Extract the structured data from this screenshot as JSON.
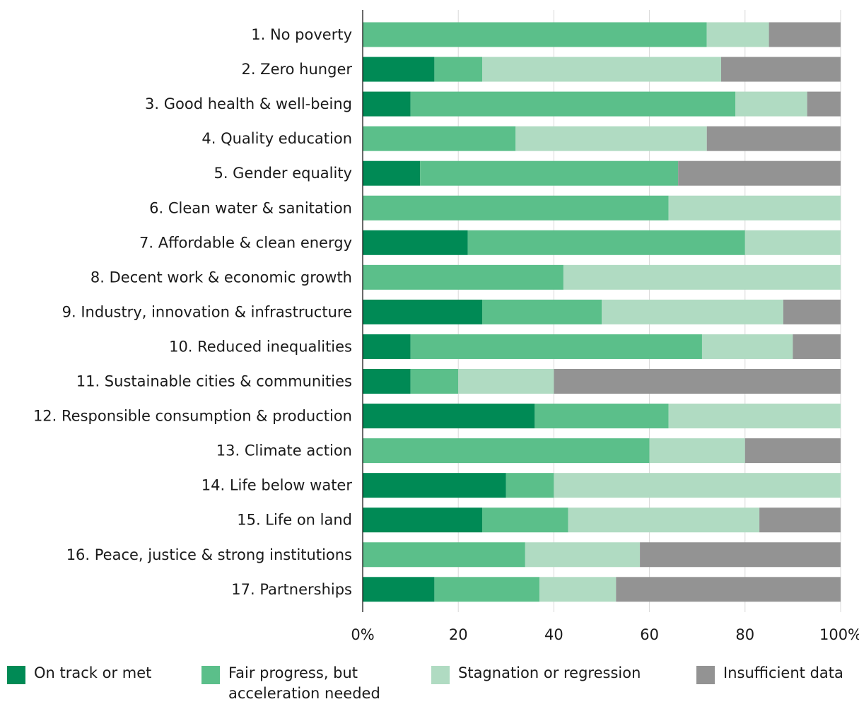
{
  "chart_data": {
    "type": "bar",
    "orientation": "horizontal",
    "stacked": true,
    "categories": [
      "1. No poverty",
      "2. Zero hunger",
      "3. Good health & well-being",
      "4. Quality education",
      "5. Gender equality",
      "6. Clean water & sanitation",
      "7. Affordable & clean energy",
      "8. Decent work & economic growth",
      "9. Industry, innovation & infrastructure",
      "10. Reduced inequalities",
      "11. Sustainable cities & communities",
      "12. Responsible consumption & production",
      "13. Climate action",
      "14. Life below water",
      "15. Life on land",
      "16. Peace, justice & strong institutions",
      "17. Partnerships"
    ],
    "series": [
      {
        "name": "On track or met",
        "color": "#008a55",
        "values": [
          0,
          15,
          10,
          0,
          12,
          0,
          22,
          0,
          25,
          10,
          10,
          36,
          0,
          30,
          25,
          0,
          15
        ]
      },
      {
        "name": "Fair progress, but acceleration needed",
        "color": "#5bbf8a",
        "values": [
          72,
          10,
          68,
          32,
          54,
          64,
          58,
          42,
          25,
          61,
          10,
          28,
          60,
          10,
          18,
          34,
          22
        ]
      },
      {
        "name": "Stagnation or regression",
        "color": "#b0dbc2",
        "values": [
          13,
          50,
          15,
          40,
          0,
          36,
          20,
          58,
          38,
          19,
          20,
          36,
          20,
          60,
          40,
          24,
          16
        ]
      },
      {
        "name": "Insufficient data",
        "color": "#939393",
        "values": [
          15,
          25,
          7,
          28,
          34,
          0,
          0,
          0,
          12,
          10,
          60,
          0,
          20,
          0,
          17,
          42,
          47
        ]
      }
    ],
    "x_ticks": [
      "0%",
      "20",
      "40",
      "60",
      "80",
      "100%"
    ],
    "x_tick_values": [
      0,
      20,
      40,
      60,
      80,
      100
    ],
    "xlim": [
      0,
      100
    ],
    "xlabel": "",
    "ylabel": "",
    "grid": true,
    "legend_position": "bottom"
  }
}
